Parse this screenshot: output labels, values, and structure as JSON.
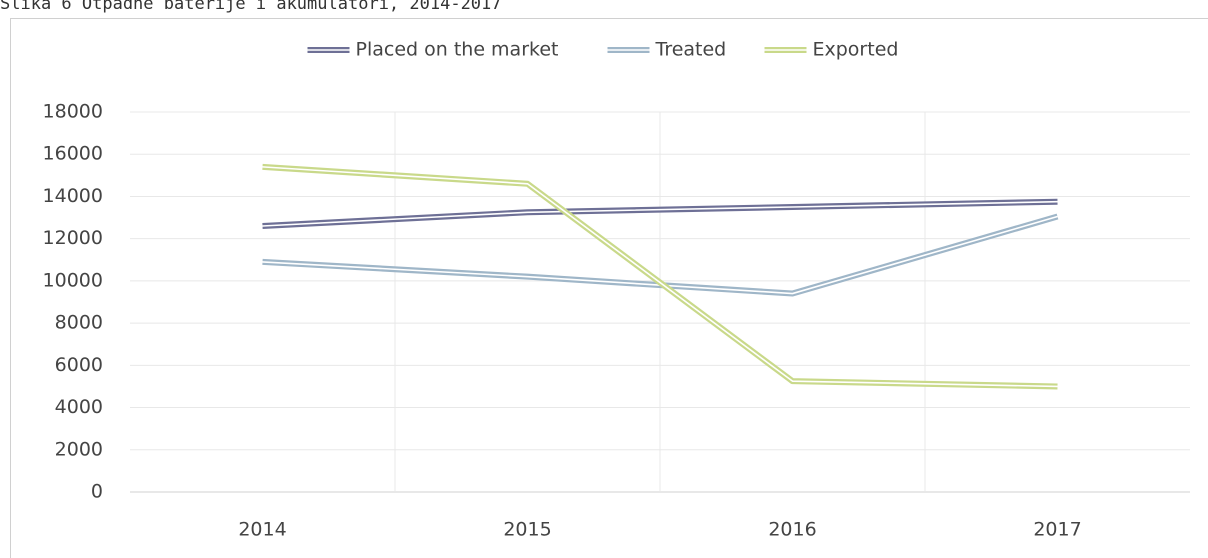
{
  "chart_data": {
    "type": "line",
    "title": "Slika 6 Otpadne baterije i akumulatori, 2014-2017",
    "categories": [
      "2014",
      "2015",
      "2016",
      "2017"
    ],
    "series": [
      {
        "name": "Placed on the market",
        "color": "#6e7096",
        "values": [
          12600,
          13250,
          13500,
          13750
        ]
      },
      {
        "name": "Treated",
        "color": "#9fb6c8",
        "values": [
          10900,
          10200,
          9400,
          13050
        ]
      },
      {
        "name": "Exported",
        "color": "#c9d98a",
        "values": [
          15400,
          14600,
          5250,
          5000
        ]
      }
    ],
    "ylim": [
      0,
      18000
    ],
    "yticks": [
      0,
      2000,
      4000,
      6000,
      8000,
      10000,
      12000,
      14000,
      16000,
      18000
    ],
    "grid": true,
    "legend": "top"
  }
}
